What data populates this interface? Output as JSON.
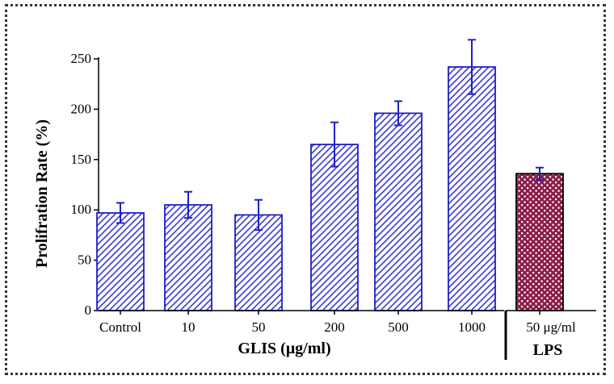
{
  "chart_data": {
    "type": "bar",
    "title": "",
    "ylabel": "Prolifration Rate (%)",
    "xlabel": "GLIS (μg/ml)",
    "ylim": [
      0,
      250
    ],
    "yticks": [
      0,
      50,
      100,
      150,
      200,
      250
    ],
    "grid": false,
    "categories": [
      "Control",
      "10",
      "50",
      "200",
      "500",
      "1000",
      "50 μg/ml"
    ],
    "values": [
      97,
      105,
      95,
      165,
      196,
      242,
      136
    ],
    "errors": [
      10,
      13,
      15,
      22,
      12,
      27,
      6
    ],
    "group_label": "LPS",
    "group_label_category": "50 μg/ml",
    "colors": {
      "glis_bar_stroke": "#1f1fc8",
      "glis_hatch": "#3a3ad6",
      "lps_bar_fill": "#8c1d4a",
      "lps_dots": "#ffffff",
      "error_bar": "#1f1fc8",
      "axis": "#000000"
    },
    "patterns": {
      "glis": "diagonal-hatch",
      "lps": "dotted"
    }
  }
}
